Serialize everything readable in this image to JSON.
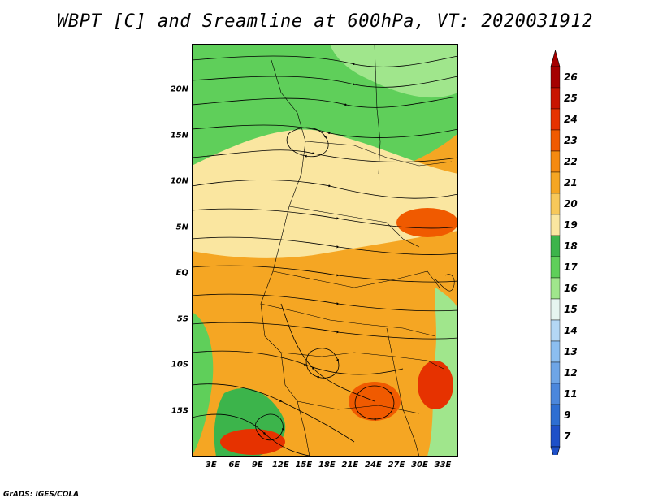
{
  "title": "WBPT [C] and Sreamline at 600hPa, VT: 2020031912",
  "credit": "GrADS: IGES/COLA",
  "map": {
    "lat_labels": [
      "20N",
      "15N",
      "10N",
      "5N",
      "EQ",
      "5S",
      "10S",
      "15S"
    ],
    "lat_values": [
      20,
      15,
      10,
      5,
      0,
      -5,
      -10,
      -15
    ],
    "lon_labels": [
      "3E",
      "6E",
      "9E",
      "12E",
      "15E",
      "18E",
      "21E",
      "24E",
      "27E",
      "30E",
      "33E"
    ],
    "lon_values": [
      3,
      6,
      9,
      12,
      15,
      18,
      21,
      24,
      27,
      30,
      33
    ],
    "lat_range": [
      -20,
      25
    ],
    "lon_range": [
      0.5,
      35
    ]
  },
  "colorbar": {
    "labels": [
      "26",
      "25",
      "24",
      "23",
      "22",
      "21",
      "20",
      "19",
      "18",
      "17",
      "16",
      "15",
      "14",
      "13",
      "12",
      "11",
      "9",
      "7"
    ],
    "colors": [
      "#a50000",
      "#c81400",
      "#e63200",
      "#f05a00",
      "#f58a10",
      "#f5a623",
      "#f7c85a",
      "#fae6a0",
      "#3cb44b",
      "#5fcf5a",
      "#a0e68c",
      "#e6f5f0",
      "#b4d7f5",
      "#8cbef0",
      "#6ea5e6",
      "#4b87dc",
      "#2d6ed2",
      "#1e50c8"
    ]
  }
}
